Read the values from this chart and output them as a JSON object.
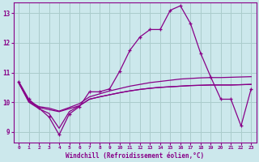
{
  "bg_color": "#cce8ec",
  "line_color": "#880088",
  "grid_color": "#aacccc",
  "xlabel": "Windchill (Refroidissement éolien,°C)",
  "xlim": [
    -0.5,
    23.5
  ],
  "ylim": [
    8.65,
    13.35
  ],
  "yticks": [
    9,
    10,
    11,
    12,
    13
  ],
  "xticks": [
    0,
    1,
    2,
    3,
    4,
    5,
    6,
    7,
    8,
    9,
    10,
    11,
    12,
    13,
    14,
    15,
    16,
    17,
    18,
    19,
    20,
    21,
    22,
    23
  ],
  "main_line": [
    10.7,
    10.1,
    9.8,
    9.5,
    8.9,
    9.6,
    9.85,
    10.35,
    10.35,
    10.45,
    11.05,
    11.75,
    12.2,
    12.45,
    12.45,
    13.1,
    13.25,
    12.65,
    11.65,
    10.85,
    10.1,
    10.1,
    9.2,
    10.45
  ],
  "line2": [
    10.65,
    10.05,
    9.85,
    9.8,
    9.7,
    9.82,
    9.95,
    10.18,
    10.28,
    10.38,
    10.46,
    10.54,
    10.6,
    10.66,
    10.7,
    10.74,
    10.78,
    10.8,
    10.82,
    10.83,
    10.83,
    10.84,
    10.85,
    10.86
  ],
  "line3": [
    10.65,
    10.02,
    9.82,
    9.75,
    9.68,
    9.78,
    9.88,
    10.1,
    10.18,
    10.25,
    10.32,
    10.38,
    10.43,
    10.47,
    10.5,
    10.52,
    10.54,
    10.56,
    10.57,
    10.58,
    10.58,
    10.58,
    10.59,
    10.6
  ],
  "line4": [
    10.65,
    10.0,
    9.78,
    9.62,
    9.12,
    9.68,
    9.88,
    10.1,
    10.18,
    10.25,
    10.32,
    10.38,
    10.43,
    10.47,
    10.5,
    10.52,
    10.54,
    10.56,
    10.57,
    10.58,
    10.58,
    10.58,
    10.59,
    10.6
  ]
}
